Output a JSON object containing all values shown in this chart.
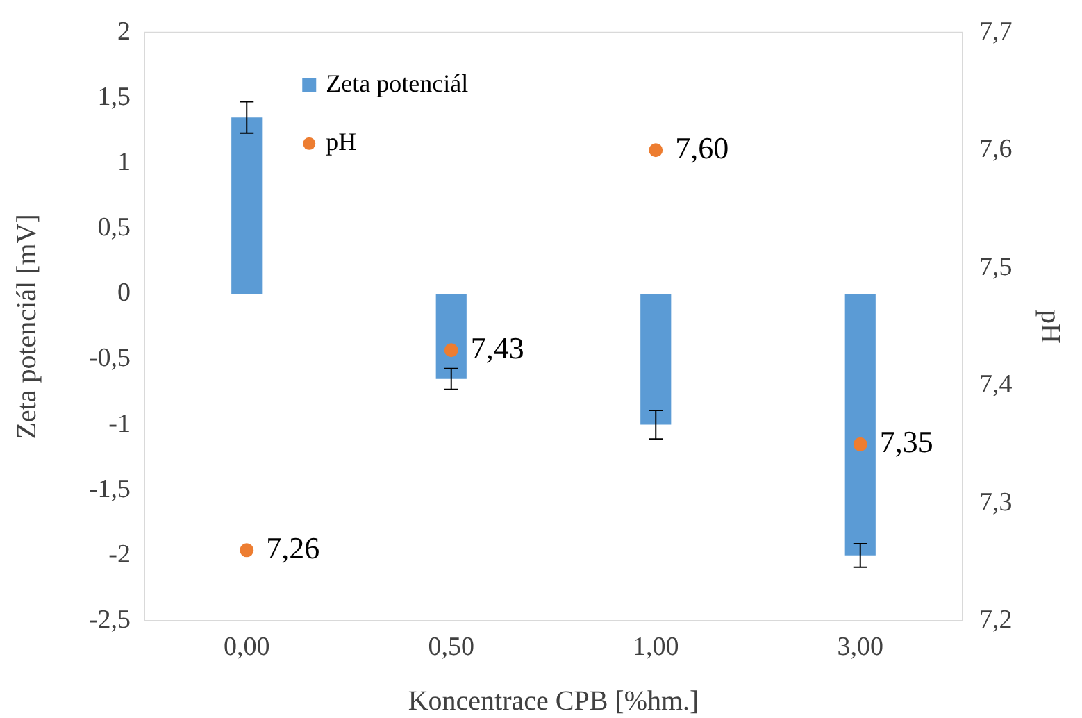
{
  "chart_data": {
    "type": "bar",
    "xlabel": "Koncentrace CPB [%hm.]",
    "ylabel": "Zeta potenciál [mV]",
    "y2label": "pH",
    "categories": [
      "0,00",
      "0,50",
      "1,00",
      "3,00"
    ],
    "series": [
      {
        "name": "Zeta potenciál",
        "color": "#5b9bd5",
        "values": [
          1.35,
          -0.65,
          -1.0,
          -2.0
        ],
        "errors": [
          0.12,
          0.08,
          0.11,
          0.09
        ]
      },
      {
        "name": "pH",
        "type": "scatter",
        "axis": "y2",
        "color": "#ed7d31",
        "x": [
          "0,00",
          "0,50",
          "1,00",
          "3,00"
        ],
        "values": [
          7.26,
          7.43,
          7.6,
          7.35
        ],
        "value_labels": [
          "7,26",
          "7,43",
          "7,60",
          "7,35"
        ]
      }
    ],
    "ylim": [
      -2.5,
      2
    ],
    "yticks": [
      {
        "value": -2.5,
        "label": "-2,5"
      },
      -2,
      {
        "value": -1.5,
        "label": "-1,5"
      },
      -1,
      {
        "value": -0.5,
        "label": "-0,5"
      },
      0,
      {
        "value": 0.5,
        "label": "0,5"
      },
      1,
      {
        "value": 1.5,
        "label": "1,5"
      },
      2
    ],
    "y2lim": [
      7.2,
      7.7
    ],
    "y2ticks": [
      {
        "value": 7.2,
        "label": "7,2"
      },
      {
        "value": 7.3,
        "label": "7,3"
      },
      {
        "value": 7.4,
        "label": "7,4"
      },
      {
        "value": 7.5,
        "label": "7,5"
      },
      {
        "value": 7.6,
        "label": "7,6"
      },
      {
        "value": 7.7,
        "label": "7,7"
      }
    ],
    "grid": false,
    "legend": "top left",
    "marker": "circle"
  }
}
